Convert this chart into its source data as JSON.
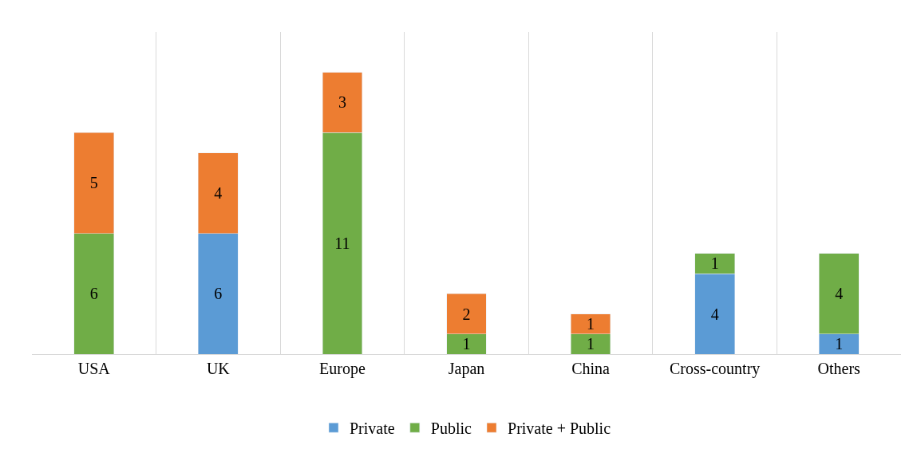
{
  "chart_data": {
    "type": "bar",
    "stacked": true,
    "data_labels": true,
    "grid": "x",
    "legend": "bottom",
    "tick_labels": "x",
    "ylim": [
      0,
      16
    ],
    "categories": [
      "USA",
      "UK",
      "Europe",
      "Japan",
      "China",
      "Cross-country",
      "Others"
    ],
    "series": [
      {
        "name": "Private",
        "color": "#5b9bd5",
        "values": [
          null,
          6,
          null,
          null,
          null,
          4,
          1
        ]
      },
      {
        "name": "Public",
        "color": "#70ad47",
        "values": [
          6,
          null,
          11,
          1,
          1,
          1,
          4
        ]
      },
      {
        "name": "Private + Public",
        "color": "#ed7d31",
        "values": [
          5,
          4,
          3,
          2,
          1,
          null,
          null
        ]
      }
    ]
  }
}
